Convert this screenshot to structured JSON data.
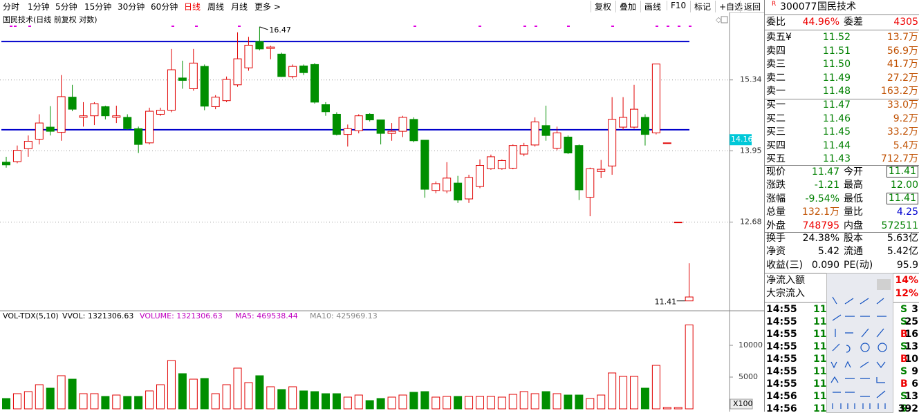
{
  "toolbar": {
    "periods": [
      "分时",
      "1分钟",
      "5分钟",
      "15分钟",
      "30分钟",
      "60分钟",
      "日线",
      "周线",
      "月线",
      "更多 >"
    ],
    "active": 6,
    "buttons": [
      "复权",
      "叠加",
      "画线",
      "F10",
      "标记",
      "+自选",
      "返回"
    ]
  },
  "chart": {
    "title": "国民技术(日线 前复权 对数)",
    "ylim": [
      11.26,
      16.76
    ],
    "log": true,
    "yticks": [
      15.34,
      13.95,
      12.68
    ],
    "cursor": {
      "value": 14.16,
      "label": "14.16"
    },
    "hlines": [
      16.15,
      14.35
    ],
    "hline_color": "#0000cc",
    "high_label": {
      "value": 16.47,
      "label": "16.47",
      "index": 23
    },
    "low_label": {
      "value": 11.41,
      "label": "11.41",
      "index": 62
    },
    "up_color": "#e00000",
    "down_color": "#008f00",
    "candles": [
      [
        13.74,
        13.84,
        13.64,
        13.69
      ],
      [
        13.75,
        14.05,
        13.72,
        13.96
      ],
      [
        13.99,
        14.24,
        13.84,
        14.13
      ],
      [
        14.17,
        14.65,
        14.07,
        14.48
      ],
      [
        14.4,
        14.81,
        14.24,
        14.32
      ],
      [
        14.3,
        15.44,
        14.14,
        15.0
      ],
      [
        14.99,
        15.24,
        14.71,
        14.75
      ],
      [
        14.59,
        14.89,
        14.41,
        14.62
      ],
      [
        14.62,
        14.89,
        14.44,
        14.86
      ],
      [
        14.8,
        14.82,
        14.55,
        14.62
      ],
      [
        14.59,
        14.82,
        14.48,
        14.62
      ],
      [
        14.59,
        14.65,
        14.35,
        14.37
      ],
      [
        14.37,
        14.41,
        13.91,
        14.07
      ],
      [
        14.1,
        14.78,
        14.07,
        14.71
      ],
      [
        14.65,
        14.78,
        14.62,
        14.73
      ],
      [
        14.73,
        15.99,
        14.69,
        15.55
      ],
      [
        15.38,
        15.74,
        15.16,
        15.33
      ],
      [
        15.16,
        15.99,
        15.12,
        15.69
      ],
      [
        15.62,
        15.66,
        14.73,
        14.81
      ],
      [
        14.8,
        15.03,
        14.75,
        14.99
      ],
      [
        14.92,
        15.41,
        14.89,
        15.35
      ],
      [
        15.24,
        16.35,
        15.2,
        15.78
      ],
      [
        15.59,
        16.25,
        15.53,
        16.07
      ],
      [
        16.15,
        16.47,
        15.96,
        15.99
      ],
      [
        16.0,
        16.06,
        15.77,
        16.03
      ],
      [
        15.88,
        15.91,
        15.4,
        15.41
      ],
      [
        15.41,
        15.66,
        15.37,
        15.62
      ],
      [
        15.63,
        15.66,
        15.44,
        15.49
      ],
      [
        15.66,
        15.69,
        14.86,
        14.89
      ],
      [
        14.84,
        14.89,
        14.62,
        14.7
      ],
      [
        14.65,
        14.69,
        14.24,
        14.26
      ],
      [
        14.26,
        14.45,
        14.03,
        14.37
      ],
      [
        14.33,
        14.65,
        14.28,
        14.62
      ],
      [
        14.65,
        14.67,
        14.51,
        14.54
      ],
      [
        14.54,
        14.54,
        14.07,
        14.28
      ],
      [
        14.28,
        14.48,
        14.14,
        14.32
      ],
      [
        14.32,
        14.62,
        14.21,
        14.59
      ],
      [
        14.55,
        14.59,
        14.11,
        14.14
      ],
      [
        14.15,
        14.15,
        13.1,
        13.25
      ],
      [
        13.23,
        13.39,
        13.18,
        13.35
      ],
      [
        13.22,
        13.74,
        13.18,
        13.45
      ],
      [
        13.36,
        13.49,
        13.01,
        13.06
      ],
      [
        13.08,
        13.51,
        13.01,
        13.46
      ],
      [
        13.3,
        13.79,
        13.27,
        13.68
      ],
      [
        13.62,
        13.88,
        13.6,
        13.84
      ],
      [
        13.62,
        13.79,
        13.6,
        13.77
      ],
      [
        13.63,
        14.07,
        13.61,
        14.05
      ],
      [
        13.89,
        14.1,
        13.85,
        14.05
      ],
      [
        14.06,
        14.59,
        14.03,
        14.5
      ],
      [
        14.43,
        14.82,
        14.14,
        14.24
      ],
      [
        14.0,
        14.41,
        13.96,
        14.29
      ],
      [
        14.21,
        14.24,
        13.89,
        13.91
      ],
      [
        14.05,
        14.07,
        13.06,
        13.24
      ],
      [
        13.11,
        13.64,
        12.78,
        13.62
      ],
      [
        13.57,
        13.78,
        13.45,
        13.61
      ],
      [
        13.67,
        14.99,
        13.51,
        14.55
      ],
      [
        14.4,
        14.99,
        14.35,
        14.59
      ],
      [
        14.4,
        15.24,
        14.37,
        14.75
      ],
      [
        14.59,
        14.65,
        14.05,
        14.26
      ],
      [
        14.29,
        15.67,
        14.26,
        15.67
      ],
      [
        14.1,
        14.1,
        14.1,
        14.1
      ],
      [
        12.68,
        12.68,
        12.68,
        12.68
      ],
      [
        11.41,
        12.0,
        11.41,
        11.47
      ]
    ]
  },
  "volume": {
    "title": "VOL-TDX(5,10)",
    "vvol": "VVOL: 1321306.63",
    "volume": "VOLUME: 1321306.63",
    "ma5": "MA5: 469538.44",
    "ma10": "MA10: 425969.13",
    "unit": "X100",
    "ylim": [
      0,
      15217
    ],
    "yticks": [
      10000,
      5000
    ],
    "values": [
      1630,
      2391,
      2717,
      3804,
      3261,
      5217,
      4674,
      2391,
      2391,
      1957,
      2174,
      1957,
      1957,
      2826,
      3804,
      7609,
      5543,
      4674,
      4783,
      2391,
      3804,
      6413,
      4130,
      5217,
      3478,
      3043,
      3478,
      2826,
      2717,
      2391,
      2391,
      1848,
      2174,
      1304,
      1630,
      1848,
      2174,
      2609,
      2717,
      1848,
      1957,
      1957,
      1957,
      1957,
      1957,
      1848,
      2283,
      2717,
      2391,
      2717,
      2391,
      2174,
      2174,
      1630,
      2174,
      5652,
      5109,
      5109,
      3261,
      6848,
      217,
      217,
      13213
    ]
  },
  "panel": {
    "badge": "R",
    "code": "300077",
    "name": "国民技术",
    "ratio": [
      {
        "text": "委比",
        "c": "k"
      },
      {
        "text": "44.96%",
        "c": "r"
      },
      {
        "text": "委差",
        "c": "k"
      },
      {
        "text": "4305",
        "c": "r"
      }
    ],
    "sells": [
      [
        "卖五¥",
        "11.52",
        "13.7万"
      ],
      [
        "卖四",
        "11.51",
        "56.9万"
      ],
      [
        "卖三",
        "11.50",
        "41.7万"
      ],
      [
        "卖二",
        "11.49",
        "27.2万"
      ],
      [
        "卖一",
        "11.48",
        "163.2万"
      ]
    ],
    "buys": [
      [
        "买一",
        "11.47",
        "33.0万"
      ],
      [
        "买二",
        "11.46",
        "9.2万"
      ],
      [
        "买三",
        "11.45",
        "33.2万"
      ],
      [
        "买四",
        "11.44",
        "5.4万"
      ],
      [
        "买五",
        "11.43",
        "712.7万"
      ]
    ],
    "quotes": [
      [
        {
          "text": "现价",
          "c": "k"
        },
        {
          "text": "11.47",
          "c": "g"
        },
        {
          "text": "今开",
          "c": "k"
        },
        {
          "text": "11.41",
          "c": "gb"
        }
      ],
      [
        {
          "text": "涨跌",
          "c": "k"
        },
        {
          "text": "-1.21",
          "c": "g"
        },
        {
          "text": "最高",
          "c": "k"
        },
        {
          "text": "12.00",
          "c": "g"
        }
      ],
      [
        {
          "text": "涨幅",
          "c": "k"
        },
        {
          "text": "-9.54%",
          "c": "g"
        },
        {
          "text": "最低",
          "c": "k"
        },
        {
          "text": "11.41",
          "c": "gb"
        }
      ],
      [
        {
          "text": "总量",
          "c": "k"
        },
        {
          "text": "132.1万",
          "c": "o"
        },
        {
          "text": "量比",
          "c": "k"
        },
        {
          "text": "4.25",
          "c": "b"
        }
      ],
      [
        {
          "text": "外盘",
          "c": "k"
        },
        {
          "text": "748795",
          "c": "r"
        },
        {
          "text": "内盘",
          "c": "k"
        },
        {
          "text": "572511",
          "c": "g"
        }
      ]
    ],
    "finance": [
      [
        {
          "text": "换手",
          "c": "k"
        },
        {
          "text": "24.38%",
          "c": "k"
        },
        {
          "text": "股本",
          "c": "k"
        },
        {
          "text": "5.63亿",
          "c": "k"
        }
      ],
      [
        {
          "text": "净资",
          "c": "k"
        },
        {
          "text": "5.42",
          "c": "k"
        },
        {
          "text": "流通",
          "c": "k"
        },
        {
          "text": "5.42亿",
          "c": "k"
        }
      ],
      [
        {
          "text": "收益(三)",
          "c": "k"
        },
        {
          "text": "0.090",
          "c": "k"
        },
        {
          "text": "PE(动)",
          "c": "k"
        },
        {
          "text": "95.9",
          "c": "k"
        }
      ]
    ],
    "flows": [
      [
        "净流入额",
        "14%"
      ],
      [
        "大宗流入",
        "12%"
      ]
    ],
    "ticks": [
      [
        "14:55",
        "11.",
        "S",
        "3"
      ],
      [
        "14:55",
        "11.",
        "S",
        "25"
      ],
      [
        "14:55",
        "11.",
        "B",
        "16"
      ],
      [
        "14:55",
        "11.",
        "S",
        "13"
      ],
      [
        "14:55",
        "11.",
        "B",
        "10"
      ],
      [
        "14:55",
        "11.",
        "S",
        "9"
      ],
      [
        "14:55",
        "11.",
        "B",
        "6"
      ],
      [
        "14:56",
        "11.",
        "S",
        "13"
      ],
      [
        "14:56",
        "11.",
        "S",
        "392"
      ]
    ]
  }
}
